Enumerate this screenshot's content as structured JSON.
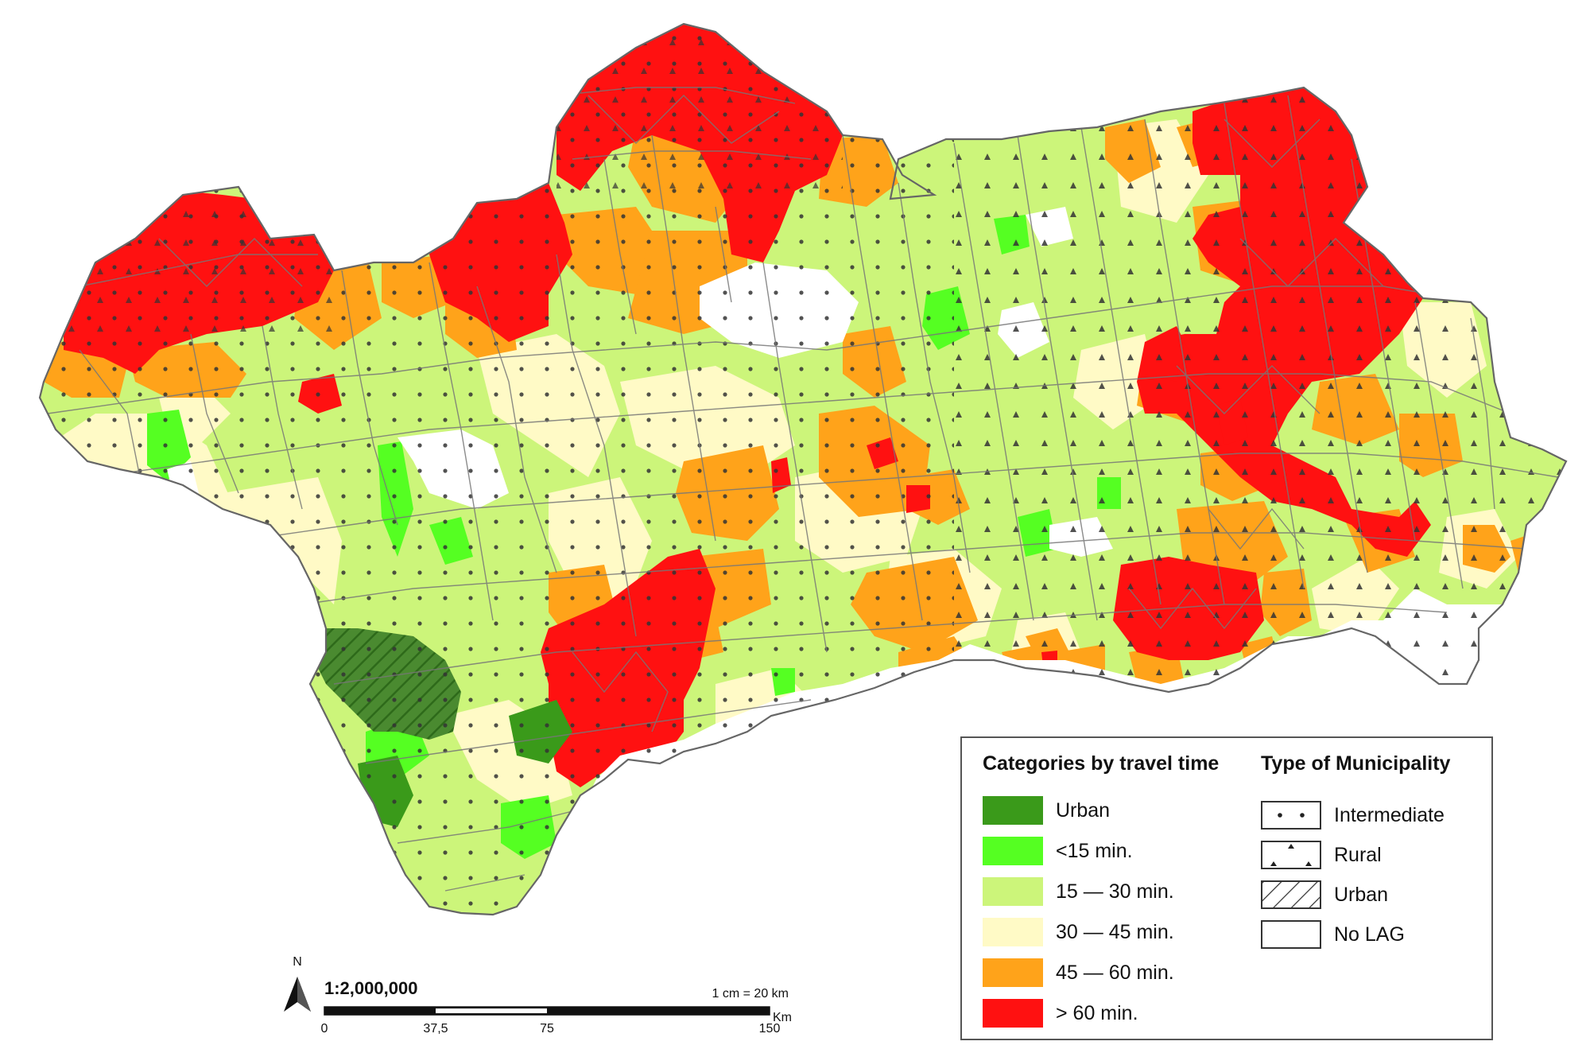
{
  "colors": {
    "urban": "#3a9a1a",
    "lt15": "#55ff22",
    "m15_30": "#ccf57a",
    "m30_45": "#fffac6",
    "m45_60": "#ffa31a",
    "gt60": "#ff1111",
    "urban_hatch_fill": "#4a8a30",
    "border": "#777777"
  },
  "legend_travel": {
    "title": "Categories by travel time",
    "items": [
      {
        "label": "Urban",
        "color_key": "urban"
      },
      {
        "label": "<15 min.",
        "color_key": "lt15"
      },
      {
        "label": "15 — 30 min.",
        "color_key": "m15_30"
      },
      {
        "label": "30 — 45 min.",
        "color_key": "m30_45"
      },
      {
        "label": "45 — 60 min.",
        "color_key": "m45_60"
      },
      {
        "label": "> 60 min.",
        "color_key": "gt60"
      }
    ]
  },
  "legend_type": {
    "title": "Type of Municipality",
    "items": [
      {
        "label": "Intermediate",
        "pattern": "dots"
      },
      {
        "label": "Rural",
        "pattern": "triangles"
      },
      {
        "label": "Urban",
        "pattern": "hatch"
      },
      {
        "label": "No LAG",
        "pattern": "none"
      }
    ]
  },
  "scale": {
    "north": "N",
    "ratio": "1:2,000,000",
    "conversion": "1 cm = 20 km",
    "unit": "Km",
    "ticks": [
      "0",
      "37,5",
      "75",
      "150"
    ]
  }
}
